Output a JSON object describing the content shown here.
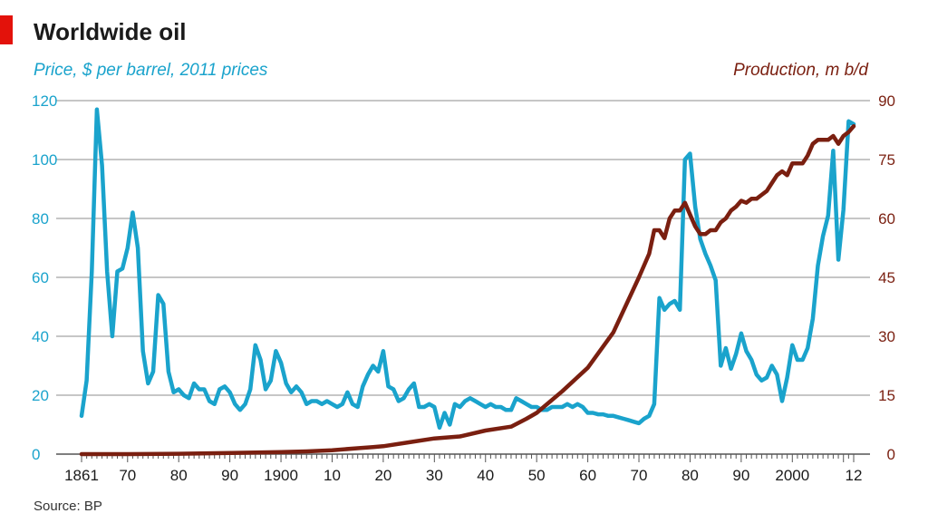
{
  "chart_data": {
    "type": "line",
    "title": "Worldwide oil",
    "left_axis_label": "Price, $ per barrel, 2011 prices",
    "right_axis_label": "Production, m b/d",
    "source": "Source: BP",
    "colors": {
      "price": "#1aa3cc",
      "production": "#7a1f10",
      "accent_bar": "#e3120b",
      "grid": "#b4b4b4",
      "axis": "#555555",
      "text": "#1a1a1a"
    },
    "xlim": [
      1861,
      2012
    ],
    "ylim_left": [
      0,
      120
    ],
    "ylim_right": [
      0,
      90
    ],
    "left_ticks": [
      0,
      20,
      40,
      60,
      80,
      100,
      120
    ],
    "right_ticks": [
      0,
      15,
      30,
      45,
      60,
      75,
      90
    ],
    "x_ticks": [
      {
        "value": 1861,
        "label": "1861"
      },
      {
        "value": 1870,
        "label": "70"
      },
      {
        "value": 1880,
        "label": "80"
      },
      {
        "value": 1890,
        "label": "90"
      },
      {
        "value": 1900,
        "label": "1900"
      },
      {
        "value": 1910,
        "label": "10"
      },
      {
        "value": 1920,
        "label": "20"
      },
      {
        "value": 1930,
        "label": "30"
      },
      {
        "value": 1940,
        "label": "40"
      },
      {
        "value": 1950,
        "label": "50"
      },
      {
        "value": 1960,
        "label": "60"
      },
      {
        "value": 1970,
        "label": "70"
      },
      {
        "value": 1980,
        "label": "80"
      },
      {
        "value": 1990,
        "label": "90"
      },
      {
        "value": 2000,
        "label": "2000"
      },
      {
        "value": 2012,
        "label": "12"
      }
    ],
    "series": [
      {
        "axis": "left",
        "x": [
          1861,
          1862,
          1863,
          1864,
          1865,
          1866,
          1867,
          1868,
          1869,
          1870,
          1871,
          1872,
          1873,
          1874,
          1875,
          1876,
          1877,
          1878,
          1879,
          1880,
          1881,
          1882,
          1883,
          1884,
          1885,
          1886,
          1887,
          1888,
          1889,
          1890,
          1891,
          1892,
          1893,
          1894,
          1895,
          1896,
          1897,
          1898,
          1899,
          1900,
          1901,
          1902,
          1903,
          1904,
          1905,
          1906,
          1907,
          1908,
          1909,
          1910,
          1911,
          1912,
          1913,
          1914,
          1915,
          1916,
          1917,
          1918,
          1919,
          1920,
          1921,
          1922,
          1923,
          1924,
          1925,
          1926,
          1927,
          1928,
          1929,
          1930,
          1931,
          1932,
          1933,
          1934,
          1935,
          1936,
          1937,
          1938,
          1939,
          1940,
          1941,
          1942,
          1943,
          1944,
          1945,
          1946,
          1947,
          1948,
          1949,
          1950,
          1951,
          1952,
          1953,
          1954,
          1955,
          1956,
          1957,
          1958,
          1959,
          1960,
          1961,
          1962,
          1963,
          1964,
          1965,
          1966,
          1967,
          1968,
          1969,
          1970,
          1971,
          1972,
          1973,
          1974,
          1975,
          1976,
          1977,
          1978,
          1979,
          1980,
          1981,
          1982,
          1983,
          1984,
          1985,
          1986,
          1987,
          1988,
          1989,
          1990,
          1991,
          1992,
          1993,
          1994,
          1995,
          1996,
          1997,
          1998,
          1999,
          2000,
          2001,
          2002,
          2003,
          2004,
          2005,
          2006,
          2007,
          2008,
          2009,
          2010,
          2011,
          2012
        ],
        "values": [
          13,
          25,
          62,
          117,
          98,
          62,
          40,
          62,
          63,
          70,
          82,
          70,
          35,
          24,
          28,
          54,
          51,
          28,
          21,
          22,
          20,
          19,
          24,
          22,
          22,
          18,
          17,
          22,
          23,
          21,
          17,
          15,
          17,
          22,
          37,
          32,
          22,
          25,
          35,
          31,
          24,
          21,
          23,
          21,
          17,
          18,
          18,
          17,
          18,
          17,
          16,
          17,
          21,
          17,
          16,
          23,
          27,
          30,
          28,
          35,
          23,
          22,
          18,
          19,
          22,
          24,
          16,
          16,
          17,
          16,
          9,
          14,
          10,
          17,
          16,
          18,
          19,
          18,
          17,
          16,
          17,
          16,
          16,
          15,
          15,
          19,
          18,
          17,
          16,
          16,
          15,
          15,
          16,
          16,
          16,
          17,
          16,
          17,
          16,
          14,
          14,
          13.5,
          13.5,
          13,
          13,
          12.5,
          12,
          11.5,
          11,
          10.5,
          12,
          13,
          17,
          53,
          49,
          51,
          52,
          49,
          100,
          102,
          84,
          73,
          68,
          64,
          59,
          30,
          36,
          29,
          34,
          41,
          35,
          32,
          27,
          25,
          26,
          30,
          27,
          18,
          26,
          37,
          32,
          32,
          36,
          46,
          64,
          74,
          81,
          103,
          66,
          83,
          113,
          112
        ]
      },
      {
        "axis": "right",
        "x": [
          1861,
          1870,
          1880,
          1890,
          1900,
          1905,
          1910,
          1915,
          1918,
          1920,
          1925,
          1930,
          1935,
          1940,
          1945,
          1948,
          1950,
          1955,
          1960,
          1965,
          1970,
          1972,
          1973,
          1974,
          1975,
          1976,
          1977,
          1978,
          1979,
          1980,
          1981,
          1982,
          1983,
          1984,
          1985,
          1986,
          1987,
          1988,
          1989,
          1990,
          1991,
          1992,
          1993,
          1994,
          1995,
          1996,
          1997,
          1998,
          1999,
          2000,
          2001,
          2002,
          2003,
          2004,
          2005,
          2006,
          2007,
          2008,
          2009,
          2010,
          2011,
          2012
        ],
        "values": [
          0,
          0,
          0.1,
          0.3,
          0.5,
          0.7,
          1,
          1.5,
          1.8,
          2,
          3,
          4,
          4.5,
          6,
          7,
          9,
          10.5,
          16,
          22,
          31,
          45,
          51,
          57,
          57,
          55,
          60,
          62,
          62,
          64,
          61,
          58,
          56,
          56,
          57,
          57,
          59,
          60,
          62,
          63,
          64.5,
          64,
          65,
          65,
          66,
          67,
          69,
          71,
          72,
          71,
          74,
          74,
          74,
          76,
          79,
          80,
          80,
          80,
          81,
          79,
          81,
          82,
          83.5
        ]
      }
    ]
  }
}
